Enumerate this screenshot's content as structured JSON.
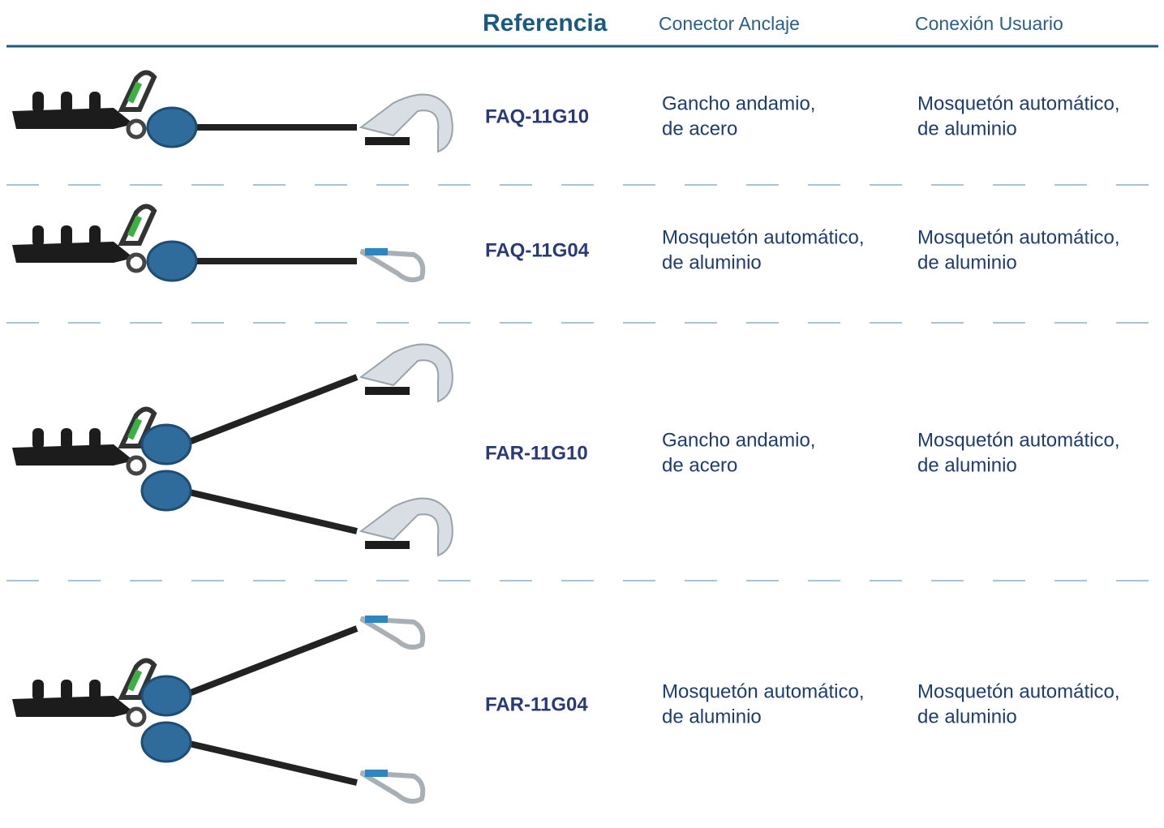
{
  "header": {
    "reference": "Referencia",
    "anchor": "Conector Anclaje",
    "user": "Conexión Usuario"
  },
  "rows": [
    {
      "reference": "FAQ-11G10",
      "anchor": [
        "Gancho andamio,",
        "de acero"
      ],
      "user": [
        "Mosquetón automático,",
        "de aluminio"
      ]
    },
    {
      "reference": "FAQ-11G04",
      "anchor": [
        "Mosquetón automático,",
        "de aluminio"
      ],
      "user": [
        "Mosquetón automático,",
        "de aluminio"
      ]
    },
    {
      "reference": "FAR-11G10",
      "anchor": [
        "Gancho andamio,",
        "de acero"
      ],
      "user": [
        "Mosquetón automático,",
        "de aluminio"
      ]
    },
    {
      "reference": "FAR-11G04",
      "anchor": [
        "Mosquetón automático,",
        "de aluminio"
      ],
      "user": [
        "Mosquetón automático,",
        "de aluminio"
      ]
    }
  ]
}
